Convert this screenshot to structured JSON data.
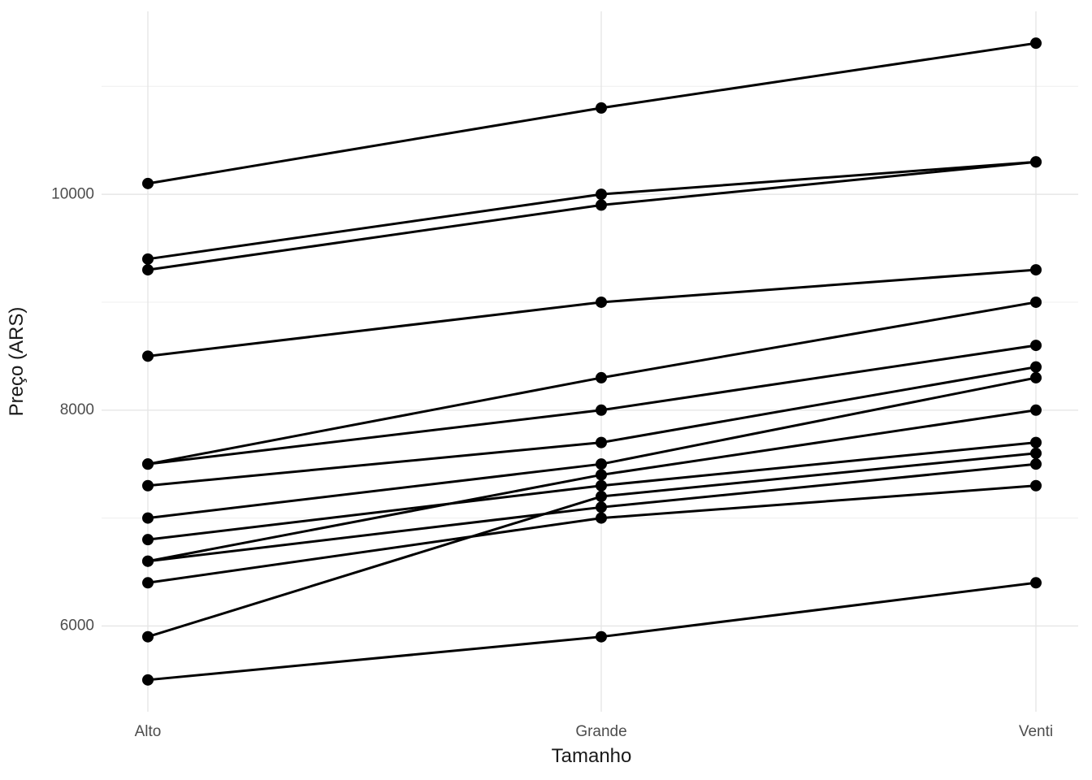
{
  "page": {
    "background": "#FFFFFF"
  },
  "chart_data": {
    "type": "line",
    "variant": "slope-chart",
    "title": "",
    "xlabel": "Tamanho",
    "ylabel": "Preço (ARS)",
    "categories": [
      "Alto",
      "Grande",
      "Venti"
    ],
    "series": [
      {
        "values": [
          10100,
          10800,
          11400
        ]
      },
      {
        "values": [
          9400,
          10000,
          10300
        ]
      },
      {
        "values": [
          9300,
          9900,
          10300
        ]
      },
      {
        "values": [
          8500,
          9000,
          9300
        ]
      },
      {
        "values": [
          7500,
          8300,
          9000
        ]
      },
      {
        "values": [
          7500,
          8000,
          8600
        ]
      },
      {
        "values": [
          7300,
          7700,
          8400
        ]
      },
      {
        "values": [
          7000,
          7500,
          8300
        ]
      },
      {
        "values": [
          6600,
          7400,
          8000
        ]
      },
      {
        "values": [
          6800,
          7300,
          7700
        ]
      },
      {
        "values": [
          5900,
          7200,
          7600
        ]
      },
      {
        "values": [
          6600,
          7100,
          7500
        ]
      },
      {
        "values": [
          6400,
          7000,
          7300
        ]
      },
      {
        "values": [
          5500,
          5900,
          6400
        ]
      }
    ],
    "yticks": [
      6000,
      8000,
      10000
    ],
    "ytick_labels": [
      "6000",
      "8000",
      "10000"
    ],
    "yminor_gridlines": [
      7000,
      9000,
      11000
    ],
    "ylim": [
      5205,
      11695
    ],
    "grid": "on",
    "legend": "none",
    "point_radius": 7,
    "line_width": 3,
    "colors": {
      "line": "#000000",
      "point": "#000000",
      "grid_major": "#E6E6E6",
      "grid_minor": "#F0F0F0",
      "tick_text": "#4D4D4D",
      "title_text": "#1A1A1A",
      "background": "#FFFFFF"
    }
  }
}
